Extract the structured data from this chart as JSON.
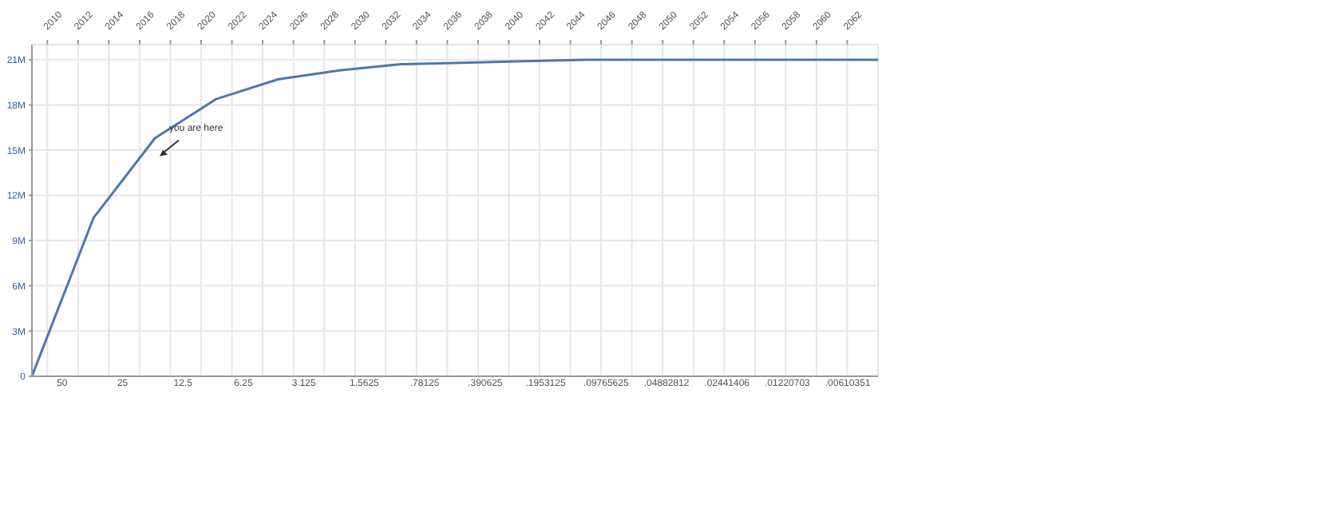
{
  "chart_data": {
    "type": "line",
    "x": [
      2009,
      2013,
      2017,
      2021,
      2025,
      2029,
      2033,
      2037,
      2041,
      2045,
      2049,
      2053,
      2057,
      2061,
      2064
    ],
    "series": [
      {
        "color": "#4a78b0",
        "values": [
          0,
          10.5,
          15.8,
          18.4,
          19.7,
          20.3,
          20.7,
          20.8,
          20.9,
          21.0,
          21.0,
          21.0,
          21.0,
          21.0,
          21.0
        ]
      }
    ],
    "xlim": [
      2009,
      2064
    ],
    "xticks": [
      2010,
      2012,
      2014,
      2016,
      2018,
      2020,
      2022,
      2024,
      2026,
      2028,
      2030,
      2032,
      2034,
      2036,
      2038,
      2040,
      2042,
      2044,
      2046,
      2048,
      2050,
      2052,
      2054,
      2056,
      2058,
      2060,
      2062
    ],
    "ylim": [
      0,
      22
    ],
    "yticks": [
      {
        "value": 0,
        "label": "0"
      },
      {
        "value": 3,
        "label": "3M"
      },
      {
        "value": 6,
        "label": "6M"
      },
      {
        "value": 9,
        "label": "9M"
      },
      {
        "value": 12,
        "label": "12M"
      },
      {
        "value": 15,
        "label": "15M"
      },
      {
        "value": 18,
        "label": "18M"
      },
      {
        "value": 21,
        "label": "21M"
      }
    ],
    "grid": true,
    "marker": "none",
    "line_style": "solid",
    "annotations": [
      "you are here",
      "50",
      "25",
      "12.5",
      "6.25",
      "3.125",
      "1.5625",
      ".78125",
      ".390625",
      ".1953125",
      ".09765625",
      ".04882812",
      ".02441406",
      ".01220703",
      ".00610351"
    ]
  }
}
